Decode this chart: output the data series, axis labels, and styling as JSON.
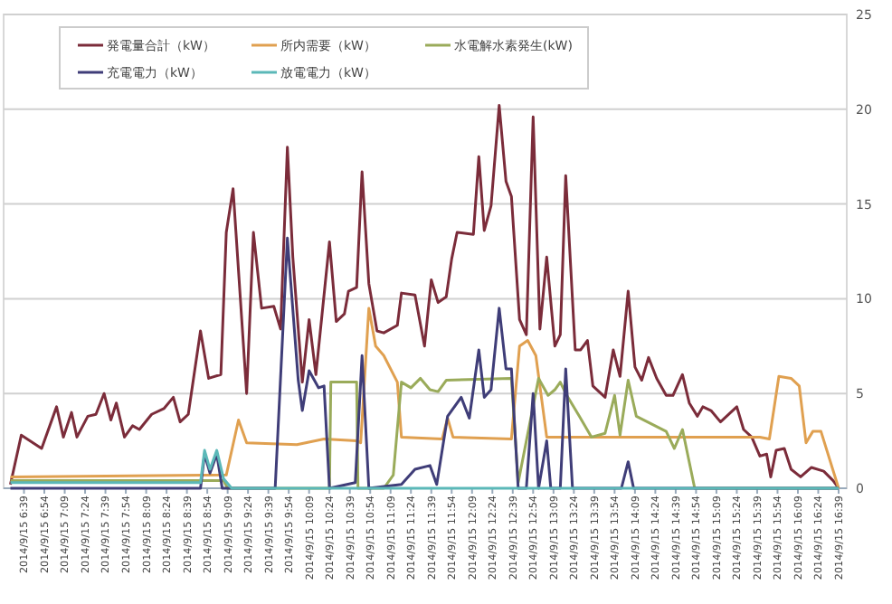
{
  "chart_data": {
    "type": "line",
    "xlim": [
      "2014-09-15T06:24",
      "2014-09-15T16:45"
    ],
    "ylim": [
      0,
      25
    ],
    "yticks": [
      0,
      5,
      10,
      15,
      20,
      25
    ],
    "grid": "y",
    "legend": "top left",
    "marker": "none",
    "line_style": "solid",
    "xticks": [
      {
        "value": "2014-09-15T06:39",
        "label": "2014/9/15 6:39"
      },
      {
        "value": "2014-09-15T06:54",
        "label": "2014/9/15 6:54"
      },
      {
        "value": "2014-09-15T07:09",
        "label": "2014/9/15 7:09"
      },
      {
        "value": "2014-09-15T07:24",
        "label": "2014/9/15 7:24"
      },
      {
        "value": "2014-09-15T07:39",
        "label": "2014/9/15 7:39"
      },
      {
        "value": "2014-09-15T07:54",
        "label": "2014/9/15 7:54"
      },
      {
        "value": "2014-09-15T08:09",
        "label": "2014/9/15 8:09"
      },
      {
        "value": "2014-09-15T08:24",
        "label": "2014/9/15 8:24"
      },
      {
        "value": "2014-09-15T08:39",
        "label": "2014/9/15 8:39"
      },
      {
        "value": "2014-09-15T08:54",
        "label": "2014/9/15 8:54"
      },
      {
        "value": "2014-09-15T09:09",
        "label": "2014/9/15 9:09"
      },
      {
        "value": "2014-09-15T09:24",
        "label": "2014/9/15 9:24"
      },
      {
        "value": "2014-09-15T09:39",
        "label": "2014/9/15 9:39"
      },
      {
        "value": "2014-09-15T09:54",
        "label": "2014/9/15 9:54"
      },
      {
        "value": "2014-09-15T10:09",
        "label": "2014/9/15 10:09"
      },
      {
        "value": "2014-09-15T10:24",
        "label": "2014/9/15 10:24"
      },
      {
        "value": "2014-09-15T10:39",
        "label": "2014/9/15 10:39"
      },
      {
        "value": "2014-09-15T10:54",
        "label": "2014/9/15 10:54"
      },
      {
        "value": "2014-09-15T11:09",
        "label": "2014/9/15 11:09"
      },
      {
        "value": "2014-09-15T11:24",
        "label": "2014/9/15 11:24"
      },
      {
        "value": "2014-09-15T11:39",
        "label": "2014/9/15 11:39"
      },
      {
        "value": "2014-09-15T11:54",
        "label": "2014/9/15 11:54"
      },
      {
        "value": "2014-09-15T12:09",
        "label": "2014/9/15 12:09"
      },
      {
        "value": "2014-09-15T12:24",
        "label": "2014/9/15 12:24"
      },
      {
        "value": "2014-09-15T12:39",
        "label": "2014/9/15 12:39"
      },
      {
        "value": "2014-09-15T12:54",
        "label": "2014/9/15 12:54"
      },
      {
        "value": "2014-09-15T13:09",
        "label": "2014/9/15 13:09"
      },
      {
        "value": "2014-09-15T13:24",
        "label": "2014/9/15 13:24"
      },
      {
        "value": "2014-09-15T13:39",
        "label": "2014/9/15 13:39"
      },
      {
        "value": "2014-09-15T13:54",
        "label": "2014/9/15 13:54"
      },
      {
        "value": "2014-09-15T14:09",
        "label": "2014/9/15 14:09"
      },
      {
        "value": "2014-09-15T14:24",
        "label": "2014/9/15 14:24"
      },
      {
        "value": "2014-09-15T14:39",
        "label": "2014/9/15 14:39"
      },
      {
        "value": "2014-09-15T14:54",
        "label": "2014/9/15 14:54"
      },
      {
        "value": "2014-09-15T15:09",
        "label": "2014/9/15 15:09"
      },
      {
        "value": "2014-09-15T15:24",
        "label": "2014/9/15 15:24"
      },
      {
        "value": "2014-09-15T15:39",
        "label": "2014/9/15 15:39"
      },
      {
        "value": "2014-09-15T15:54",
        "label": "2014/9/15 15:54"
      },
      {
        "value": "2014-09-15T16:09",
        "label": "2014/9/15 16:09"
      },
      {
        "value": "2014-09-15T16:24",
        "label": "2014/9/15 16:24"
      },
      {
        "value": "2014-09-15T16:39",
        "label": "2014/9/15 16:39"
      }
    ],
    "series": [
      {
        "name": "発電量合計（kW）",
        "color": "#7b2c3a",
        "x": [
          "2014-09-15T06:29",
          "2014-09-15T06:37",
          "2014-09-15T06:52",
          "2014-09-15T07:03",
          "2014-09-15T07:08",
          "2014-09-15T07:14",
          "2014-09-15T07:18",
          "2014-09-15T07:26",
          "2014-09-15T07:32",
          "2014-09-15T07:38",
          "2014-09-15T07:43",
          "2014-09-15T07:47",
          "2014-09-15T07:53",
          "2014-09-15T07:59",
          "2014-09-15T08:04",
          "2014-09-15T08:13",
          "2014-09-15T08:22",
          "2014-09-15T08:29",
          "2014-09-15T08:34",
          "2014-09-15T08:40",
          "2014-09-15T08:49",
          "2014-09-15T08:55",
          "2014-09-15T09:04",
          "2014-09-15T09:08",
          "2014-09-15T09:13",
          "2014-09-15T09:23",
          "2014-09-15T09:28",
          "2014-09-15T09:34",
          "2014-09-15T09:43",
          "2014-09-15T09:48",
          "2014-09-15T09:53",
          "2014-09-15T09:57",
          "2014-09-15T10:04",
          "2014-09-15T10:09",
          "2014-09-15T10:14",
          "2014-09-15T10:24",
          "2014-09-15T10:29",
          "2014-09-15T10:35",
          "2014-09-15T10:38",
          "2014-09-15T10:44",
          "2014-09-15T10:48",
          "2014-09-15T10:53",
          "2014-09-15T10:59",
          "2014-09-15T11:04",
          "2014-09-15T11:14",
          "2014-09-15T11:17",
          "2014-09-15T11:27",
          "2014-09-15T11:34",
          "2014-09-15T11:39",
          "2014-09-15T11:44",
          "2014-09-15T11:50",
          "2014-09-15T11:54",
          "2014-09-15T11:58",
          "2014-09-15T12:10",
          "2014-09-15T12:14",
          "2014-09-15T12:18",
          "2014-09-15T12:23",
          "2014-09-15T12:29",
          "2014-09-15T12:34",
          "2014-09-15T12:38",
          "2014-09-15T12:44",
          "2014-09-15T12:49",
          "2014-09-15T12:54",
          "2014-09-15T12:59",
          "2014-09-15T13:04",
          "2014-09-15T13:10",
          "2014-09-15T13:14",
          "2014-09-15T13:18",
          "2014-09-15T13:25",
          "2014-09-15T13:29",
          "2014-09-15T13:34",
          "2014-09-15T13:38",
          "2014-09-15T13:47",
          "2014-09-15T13:53",
          "2014-09-15T13:58",
          "2014-09-15T14:04",
          "2014-09-15T14:09",
          "2014-09-15T14:14",
          "2014-09-15T14:19",
          "2014-09-15T14:25",
          "2014-09-15T14:32",
          "2014-09-15T14:37",
          "2014-09-15T14:44",
          "2014-09-15T14:49",
          "2014-09-15T14:55",
          "2014-09-15T14:59",
          "2014-09-15T15:05",
          "2014-09-15T15:12",
          "2014-09-15T15:24",
          "2014-09-15T15:29",
          "2014-09-15T15:35",
          "2014-09-15T15:41",
          "2014-09-15T15:46",
          "2014-09-15T15:49",
          "2014-09-15T15:53",
          "2014-09-15T15:59",
          "2014-09-15T16:04",
          "2014-09-15T16:11",
          "2014-09-15T16:19",
          "2014-09-15T16:28",
          "2014-09-15T16:35",
          "2014-09-15T16:39"
        ],
        "values": [
          0.2,
          2.8,
          2.1,
          4.3,
          2.7,
          4.0,
          2.7,
          3.8,
          3.9,
          5.0,
          3.6,
          4.5,
          2.7,
          3.3,
          3.1,
          3.9,
          4.2,
          4.8,
          3.5,
          3.9,
          8.3,
          5.8,
          6.0,
          13.5,
          15.8,
          5.0,
          13.5,
          9.5,
          9.6,
          8.4,
          18.0,
          12.2,
          5.6,
          8.9,
          6.0,
          13.0,
          8.8,
          9.2,
          10.4,
          10.6,
          16.7,
          10.8,
          8.3,
          8.2,
          8.6,
          10.3,
          10.2,
          7.5,
          11.0,
          9.8,
          10.1,
          12.1,
          13.5,
          13.4,
          17.5,
          13.6,
          14.9,
          20.2,
          16.2,
          15.4,
          8.9,
          8.1,
          19.6,
          8.4,
          12.2,
          7.5,
          8.1,
          16.5,
          7.3,
          7.3,
          7.8,
          5.4,
          4.8,
          7.3,
          5.9,
          10.4,
          6.4,
          5.7,
          6.9,
          5.8,
          4.9,
          4.9,
          6.0,
          4.5,
          3.8,
          4.3,
          4.1,
          3.5,
          4.3,
          3.1,
          2.7,
          1.7,
          1.8,
          0.6,
          2.0,
          2.1,
          1.0,
          0.6,
          1.1,
          0.9,
          0.4,
          0
        ]
      },
      {
        "name": "所内需要（kW）",
        "color": "#e0a050",
        "x": [
          "2014-09-15T06:29",
          "2014-09-15T09:08",
          "2014-09-15T09:17",
          "2014-09-15T09:23",
          "2014-09-15T10:00",
          "2014-09-15T10:20",
          "2014-09-15T10:44",
          "2014-09-15T10:47",
          "2014-09-15T10:53",
          "2014-09-15T10:58",
          "2014-09-15T11:04",
          "2014-09-15T11:14",
          "2014-09-15T11:17",
          "2014-09-15T11:47",
          "2014-09-15T11:51",
          "2014-09-15T11:55",
          "2014-09-15T12:38",
          "2014-09-15T12:44",
          "2014-09-15T12:50",
          "2014-09-15T12:56",
          "2014-09-15T13:04",
          "2014-09-15T15:41",
          "2014-09-15T15:48",
          "2014-09-15T15:55",
          "2014-09-15T16:04",
          "2014-09-15T16:10",
          "2014-09-15T16:15",
          "2014-09-15T16:20",
          "2014-09-15T16:26",
          "2014-09-15T16:39"
        ],
        "values": [
          0.6,
          0.7,
          3.6,
          2.4,
          2.3,
          2.6,
          2.5,
          2.4,
          9.5,
          7.5,
          7.0,
          5.6,
          2.7,
          2.6,
          3.7,
          2.7,
          2.6,
          7.5,
          7.8,
          7.0,
          2.7,
          2.7,
          2.6,
          5.9,
          5.8,
          5.4,
          2.4,
          3.0,
          3.0,
          0
        ]
      },
      {
        "name": "水電解水素発生(kW)",
        "color": "#9aab5a",
        "x": [
          "2014-09-15T06:29",
          "2014-09-15T09:06",
          "2014-09-15T09:09",
          "2014-09-15T10:24",
          "2014-09-15T10:25",
          "2014-09-15T10:44",
          "2014-09-15T10:45",
          "2014-09-15T11:04",
          "2014-09-15T11:11",
          "2014-09-15T11:17",
          "2014-09-15T11:24",
          "2014-09-15T11:31",
          "2014-09-15T11:38",
          "2014-09-15T11:44",
          "2014-09-15T11:50",
          "2014-09-15T12:38",
          "2014-09-15T12:43",
          "2014-09-15T12:58",
          "2014-09-15T13:05",
          "2014-09-15T13:10",
          "2014-09-15T13:14",
          "2014-09-15T13:18",
          "2014-09-15T13:28",
          "2014-09-15T13:37",
          "2014-09-15T13:47",
          "2014-09-15T13:54",
          "2014-09-15T13:58",
          "2014-09-15T14:04",
          "2014-09-15T14:10",
          "2014-09-15T14:32",
          "2014-09-15T14:38",
          "2014-09-15T14:44",
          "2014-09-15T14:53",
          "2014-09-15T16:39"
        ],
        "values": [
          0.4,
          0.4,
          0,
          0,
          5.6,
          5.6,
          0,
          0,
          0.7,
          5.6,
          5.3,
          5.8,
          5.2,
          5.1,
          5.7,
          5.8,
          0.3,
          5.8,
          4.9,
          5.2,
          5.6,
          5.0,
          3.8,
          2.7,
          2.9,
          4.9,
          2.8,
          5.7,
          3.8,
          3.0,
          2.1,
          3.1,
          0,
          0
        ]
      },
      {
        "name": "充電電力（kW）",
        "color": "#3f3d78",
        "x": [
          "2014-09-15T06:29",
          "2014-09-15T08:49",
          "2014-09-15T08:52",
          "2014-09-15T08:56",
          "2014-09-15T09:01",
          "2014-09-15T09:05",
          "2014-09-15T09:44",
          "2014-09-15T09:53",
          "2014-09-15T10:01",
          "2014-09-15T10:04",
          "2014-09-15T10:09",
          "2014-09-15T10:16",
          "2014-09-15T10:20",
          "2014-09-15T10:24",
          "2014-09-15T10:43",
          "2014-09-15T10:48",
          "2014-09-15T10:53",
          "2014-09-15T11:17",
          "2014-09-15T11:27",
          "2014-09-15T11:38",
          "2014-09-15T11:43",
          "2014-09-15T11:51",
          "2014-09-15T12:01",
          "2014-09-15T12:07",
          "2014-09-15T12:14",
          "2014-09-15T12:18",
          "2014-09-15T12:23",
          "2014-09-15T12:29",
          "2014-09-15T12:34",
          "2014-09-15T12:38",
          "2014-09-15T12:43",
          "2014-09-15T12:49",
          "2014-09-15T12:54",
          "2014-09-15T12:58",
          "2014-09-15T13:04",
          "2014-09-15T13:07",
          "2014-09-15T13:14",
          "2014-09-15T13:18",
          "2014-09-15T13:23",
          "2014-09-15T13:59",
          "2014-09-15T14:04",
          "2014-09-15T14:08",
          "2014-09-15T16:39"
        ],
        "values": [
          0,
          0,
          1.8,
          0.8,
          1.8,
          0,
          0,
          13.2,
          5.7,
          4.1,
          6.2,
          5.3,
          5.4,
          0,
          0.3,
          7.0,
          0,
          0.2,
          1.0,
          1.2,
          0.2,
          3.8,
          4.8,
          3.7,
          7.3,
          4.8,
          5.2,
          9.5,
          6.3,
          6.3,
          0,
          0,
          5.0,
          0,
          2.5,
          0,
          0,
          6.3,
          0,
          0,
          1.4,
          0,
          0
        ]
      },
      {
        "name": "放電電力（kW）",
        "color": "#5bb8b8",
        "x": [
          "2014-09-15T06:29",
          "2014-09-15T08:49",
          "2014-09-15T08:52",
          "2014-09-15T08:56",
          "2014-09-15T09:01",
          "2014-09-15T09:06",
          "2014-09-15T09:12",
          "2014-09-15T16:39"
        ],
        "values": [
          0.3,
          0.3,
          2.0,
          1.0,
          2.0,
          0.5,
          0,
          0
        ]
      }
    ]
  }
}
